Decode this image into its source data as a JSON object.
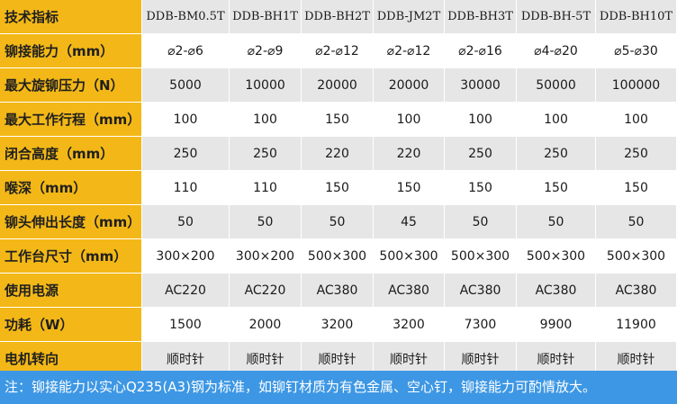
{
  "table": {
    "rows": [
      {
        "label": "技术指标",
        "values": [
          "DDB-BM0.5T",
          "DDB-BH1T",
          "DDB-BH2T",
          "DDB-JM2T",
          "DDB-BH3T",
          "DDB-BH-5T",
          "DDB-BH10T"
        ]
      },
      {
        "label": "铆接能力（mm）",
        "values": [
          "⌀2-⌀6",
          "⌀2-⌀9",
          "⌀2-⌀12",
          "⌀2-⌀12",
          "⌀2-⌀16",
          "⌀4-⌀20",
          "⌀5-⌀30"
        ]
      },
      {
        "label": "最大旋铆压力（N）",
        "values": [
          "5000",
          "10000",
          "20000",
          "20000",
          "30000",
          "50000",
          "100000"
        ]
      },
      {
        "label": "最大工作行程（mm）",
        "values": [
          "100",
          "100",
          "150",
          "100",
          "100",
          "100",
          "100"
        ]
      },
      {
        "label": "闭合高度（mm）",
        "values": [
          "250",
          "250",
          "220",
          "220",
          "250",
          "250",
          "250"
        ]
      },
      {
        "label": "喉深（mm）",
        "values": [
          "110",
          "110",
          "150",
          "150",
          "150",
          "150",
          "150"
        ]
      },
      {
        "label": "铆头伸出长度（mm）",
        "values": [
          "50",
          "50",
          "50",
          "45",
          "50",
          "50",
          "50"
        ]
      },
      {
        "label": "工作台尺寸（mm）",
        "values": [
          "300×200",
          "300×200",
          "500×300",
          "500×300",
          "500×300",
          "500×300",
          "500×300"
        ]
      },
      {
        "label": "使用电源",
        "values": [
          "AC220",
          "AC220",
          "AC380",
          "AC380",
          "AC380",
          "AC380",
          "AC380"
        ]
      },
      {
        "label": "功耗（W）",
        "values": [
          "1500",
          "2000",
          "3200",
          "3200",
          "7300",
          "9900",
          "11900"
        ]
      },
      {
        "label": "电机转向",
        "values": [
          "顺时针",
          "顺时针",
          "顺时针",
          "顺时针",
          "顺时针",
          "顺时针",
          "顺时针"
        ]
      }
    ]
  },
  "note": "注：铆接能力以实心Q235(A3)钢为标准，如铆钉材质为有色金属、空心钉，铆接能力可酌情放大。",
  "colors": {
    "header": "#f3b817",
    "stripe": "#e6e6e6",
    "note_bg": "#3d97e4"
  }
}
